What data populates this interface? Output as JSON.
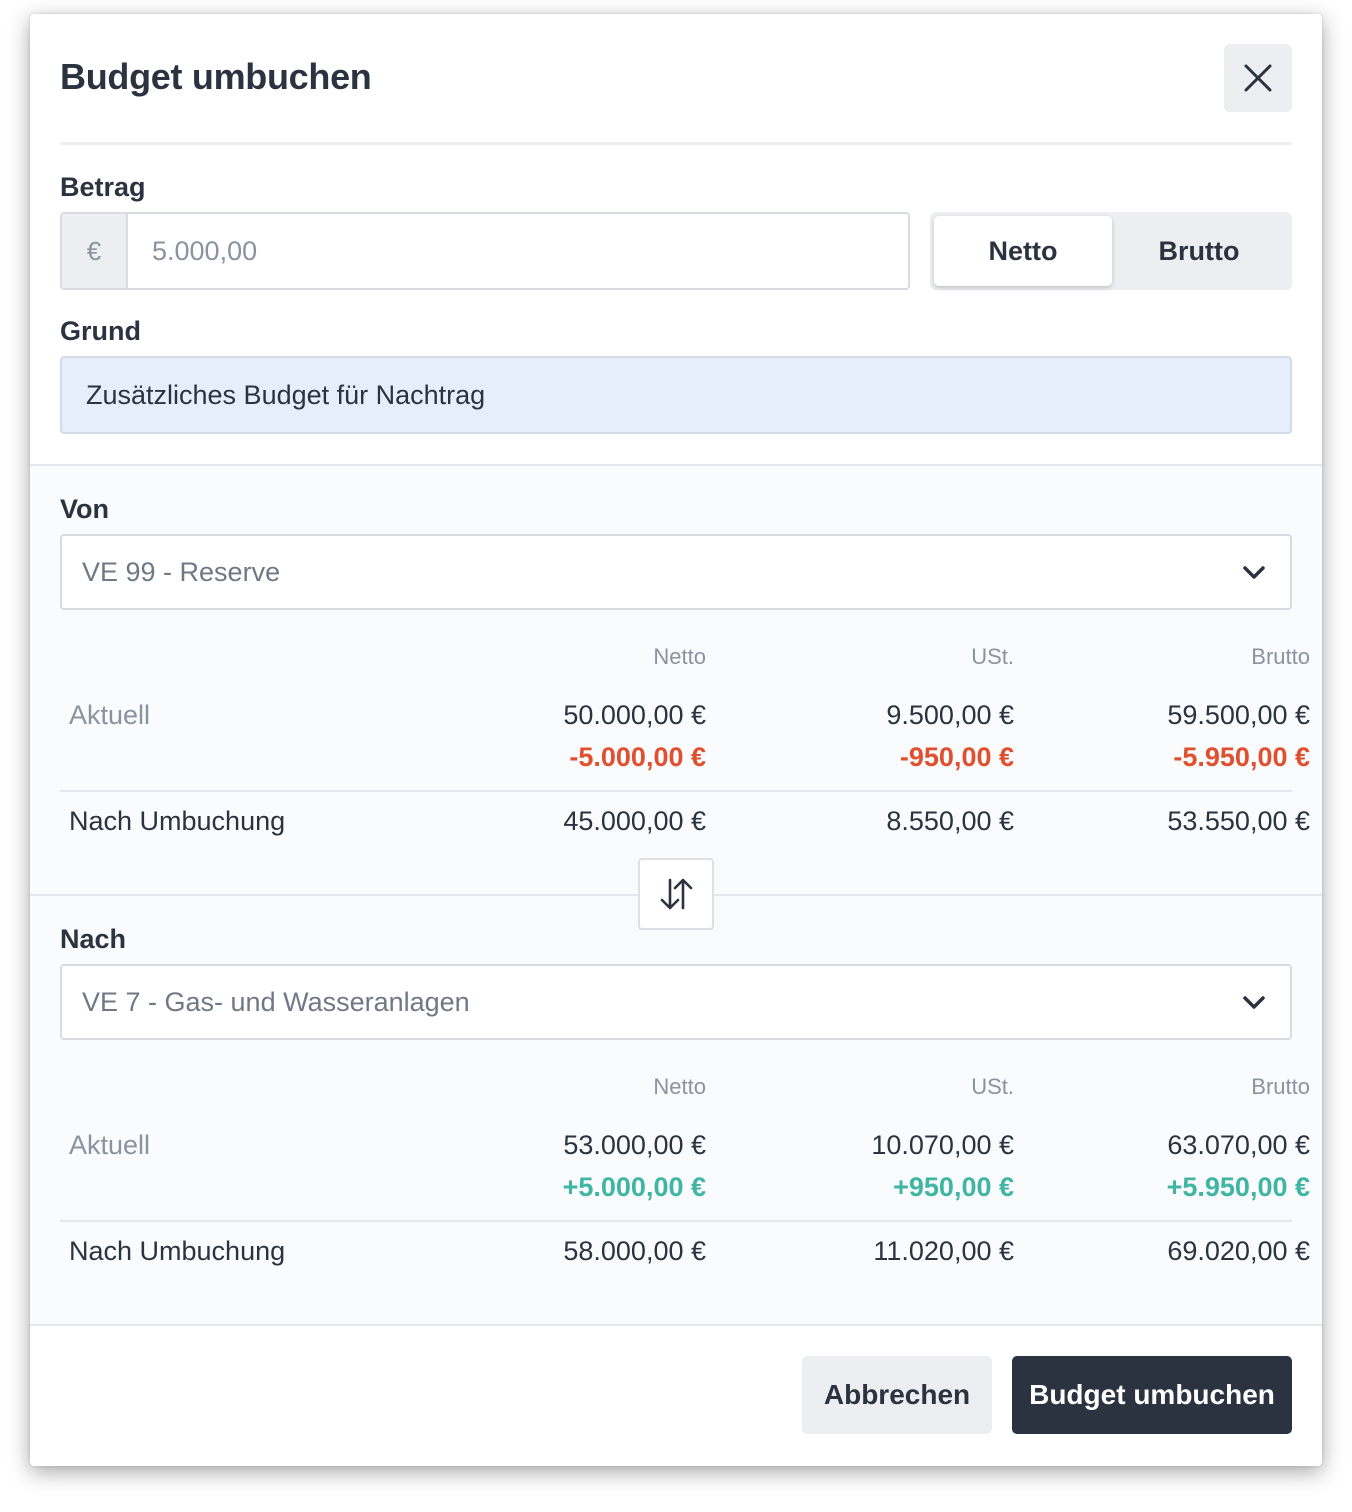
{
  "dialog": {
    "title": "Budget umbuchen",
    "close_icon": "close-icon"
  },
  "amount": {
    "label": "Betrag",
    "currency": "€",
    "placeholder": "5.000,00",
    "value": "",
    "toggle": {
      "options": [
        "Netto",
        "Brutto"
      ],
      "selected": "Netto"
    }
  },
  "reason": {
    "label": "Grund",
    "value": "Zusätzliches Budget für Nachtrag"
  },
  "from": {
    "label": "Von",
    "selected": "VE 99 - Reserve",
    "columns": [
      "Netto",
      "USt.",
      "Brutto"
    ],
    "current": {
      "label": "Aktuell",
      "values": [
        "50.000,00 €",
        "9.500,00 €",
        "59.500,00 €"
      ]
    },
    "change": {
      "values": [
        "-5.000,00 €",
        "-950,00 €",
        "-5.950,00 €"
      ]
    },
    "after": {
      "label": "Nach Umbuchung",
      "values": [
        "45.000,00 €",
        "8.550,00 €",
        "53.550,00 €"
      ]
    }
  },
  "swap": {
    "icon": "swap-arrows-icon"
  },
  "to": {
    "label": "Nach",
    "selected": "VE 7 - Gas- und Wasseranlagen",
    "columns": [
      "Netto",
      "USt.",
      "Brutto"
    ],
    "current": {
      "label": "Aktuell",
      "values": [
        "53.000,00 €",
        "10.070,00 €",
        "63.070,00 €"
      ]
    },
    "change": {
      "values": [
        "+5.000,00 €",
        "+950,00 €",
        "+5.950,00 €"
      ]
    },
    "after": {
      "label": "Nach Umbuchung",
      "values": [
        "58.000,00 €",
        "11.020,00 €",
        "69.020,00 €"
      ]
    }
  },
  "footer": {
    "cancel_label": "Abbrechen",
    "submit_label": "Budget umbuchen"
  },
  "colors": {
    "primary": "#2b3340",
    "negative": "#e0502f",
    "positive": "#3fb5a3",
    "reason_bg": "#e6eefb"
  }
}
